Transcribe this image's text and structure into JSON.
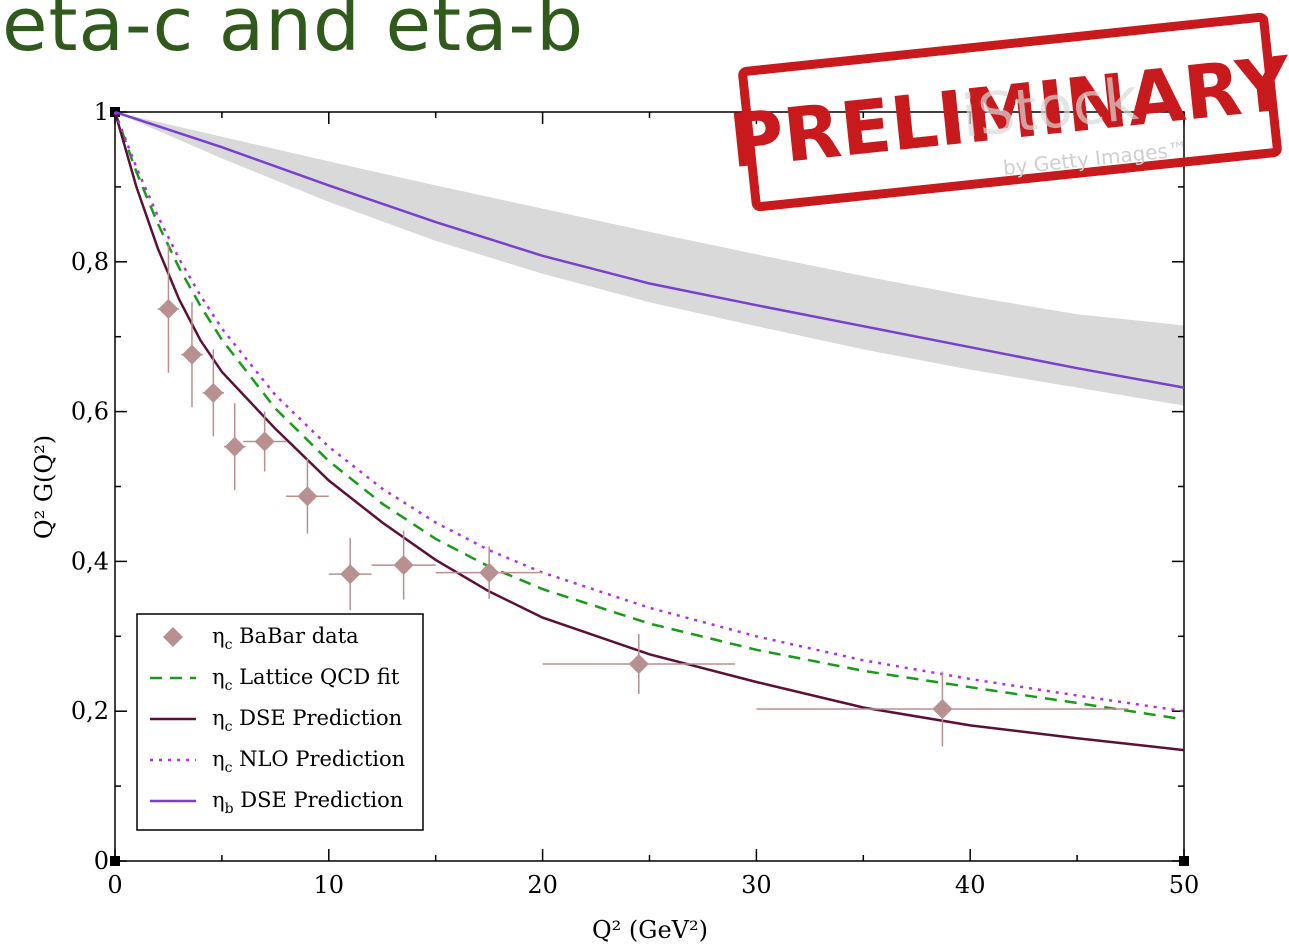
{
  "slide": {
    "title": "eta-c and eta-b"
  },
  "stamp": {
    "text": "PRELIMINARY",
    "watermark": "iStock",
    "watermark_sub": "by Getty Images™"
  },
  "chart_data": {
    "type": "line",
    "xlabel": "Q² (GeV²)",
    "ylabel": "Q² G(Q²)",
    "xlim": [
      0,
      50
    ],
    "ylim": [
      0,
      1
    ],
    "x_ticks": [
      0,
      10,
      20,
      30,
      40,
      50
    ],
    "x_tick_labels": [
      "0",
      "10",
      "20",
      "30",
      "40",
      "50"
    ],
    "y_ticks": [
      0,
      0.2,
      0.4,
      0.6,
      0.8,
      1
    ],
    "y_tick_labels": [
      "0",
      "0,2",
      "0,4",
      "0,6",
      "0,8",
      "1"
    ],
    "legend_position": "bottom-left",
    "band": {
      "x": [
        0,
        5,
        10,
        15,
        20,
        25,
        30,
        35,
        40,
        45,
        50
      ],
      "upper": [
        1.0,
        0.967,
        0.934,
        0.902,
        0.871,
        0.84,
        0.81,
        0.781,
        0.754,
        0.73,
        0.715
      ],
      "lower": [
        1.0,
        0.938,
        0.88,
        0.828,
        0.784,
        0.746,
        0.714,
        0.683,
        0.656,
        0.632,
        0.608
      ],
      "color": "#d9d9d9"
    },
    "series": [
      {
        "name": "BaBar data",
        "label_main": "η",
        "label_sub": "c",
        "label_rest": " BaBar data",
        "kind": "points",
        "color": "#b89090",
        "marker": "diamond",
        "points": [
          {
            "x": 2.5,
            "y": 0.737,
            "xerr": 0.5,
            "yerr": 0.085
          },
          {
            "x": 3.6,
            "y": 0.676,
            "xerr": 0.5,
            "yerr": 0.07
          },
          {
            "x": 4.6,
            "y": 0.625,
            "xerr": 0.5,
            "yerr": 0.058
          },
          {
            "x": 5.6,
            "y": 0.553,
            "xerr": 0.5,
            "yerr": 0.058
          },
          {
            "x": 7.0,
            "y": 0.56,
            "xerr": 1.0,
            "yerr": 0.04
          },
          {
            "x": 9.0,
            "y": 0.487,
            "xerr": 1.0,
            "yerr": 0.05
          },
          {
            "x": 11.0,
            "y": 0.383,
            "xerr": 1.0,
            "yerr": 0.048
          },
          {
            "x": 13.5,
            "y": 0.395,
            "xerr": 1.5,
            "yerr": 0.046
          },
          {
            "x": 17.5,
            "y": 0.385,
            "xerr": 2.5,
            "yerr": 0.035
          },
          {
            "x": 24.5,
            "y": 0.263,
            "xerr": 4.5,
            "yerr": 0.04
          },
          {
            "x": 38.7,
            "y": 0.203,
            "xerr": 8.7,
            "yerr": 0.05
          }
        ]
      },
      {
        "name": "Lattice QCD fit",
        "label_main": "η",
        "label_sub": "c",
        "label_rest": " Lattice QCD fit",
        "kind": "line",
        "color": "#1a9a1a",
        "dash": "12,8",
        "width": 2.5,
        "x": [
          0,
          1,
          2,
          3,
          4,
          5,
          7.5,
          10,
          12.5,
          15,
          17.5,
          20,
          25,
          30,
          35,
          40,
          45,
          50
        ],
        "y": [
          1.0,
          0.92,
          0.851,
          0.792,
          0.741,
          0.696,
          0.604,
          0.534,
          0.477,
          0.43,
          0.393,
          0.363,
          0.317,
          0.282,
          0.254,
          0.232,
          0.211,
          0.189
        ]
      },
      {
        "name": "DSE Prediction (eta-c)",
        "label_main": "η",
        "label_sub": "c",
        "label_rest": " DSE Prediction",
        "kind": "line",
        "color": "#5c1038",
        "dash": "",
        "width": 2.5,
        "x": [
          0,
          1,
          2,
          3,
          4,
          5,
          7.5,
          10,
          12.5,
          15,
          17.5,
          20,
          25,
          30,
          35,
          40,
          45,
          50
        ],
        "y": [
          1.0,
          0.9,
          0.818,
          0.75,
          0.695,
          0.653,
          0.577,
          0.508,
          0.452,
          0.402,
          0.36,
          0.325,
          0.276,
          0.239,
          0.205,
          0.181,
          0.164,
          0.148
        ]
      },
      {
        "name": "NLO Prediction",
        "label_main": "η",
        "label_sub": "c",
        "label_rest": " NLO Prediction",
        "kind": "line",
        "color": "#b030e0",
        "dash": "3,6",
        "width": 2.5,
        "x": [
          0,
          1,
          2,
          3,
          4,
          5,
          7.5,
          10,
          12.5,
          15,
          17.5,
          20,
          25,
          30,
          35,
          40,
          45,
          50
        ],
        "y": [
          1.0,
          0.926,
          0.861,
          0.804,
          0.755,
          0.711,
          0.622,
          0.553,
          0.497,
          0.452,
          0.415,
          0.385,
          0.338,
          0.3,
          0.268,
          0.243,
          0.221,
          0.2
        ]
      },
      {
        "name": "DSE Prediction (eta-b)",
        "label_main": "η",
        "label_sub": "b",
        "label_rest": " DSE Prediction",
        "kind": "line",
        "color": "#7a3fd0",
        "dash": "",
        "width": 2.5,
        "x": [
          0,
          5,
          10,
          15,
          20,
          25,
          30,
          35,
          40,
          45,
          50
        ],
        "y": [
          1.0,
          0.953,
          0.902,
          0.853,
          0.808,
          0.771,
          0.742,
          0.714,
          0.686,
          0.658,
          0.632
        ]
      }
    ]
  }
}
